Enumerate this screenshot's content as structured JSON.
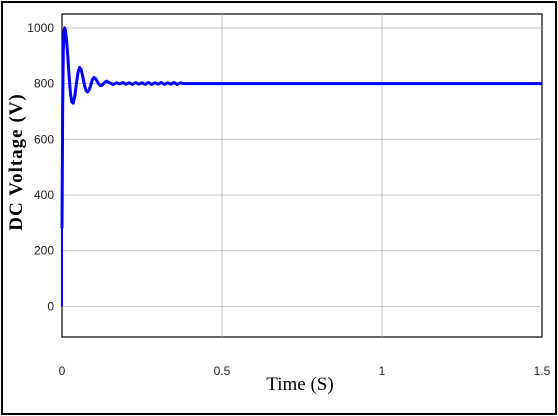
{
  "chart_data": {
    "type": "line",
    "title": "",
    "xlabel": "Time (S)",
    "ylabel": "DC Voltage (V)",
    "xlim": [
      0,
      1.5
    ],
    "ylim": [
      -110,
      1050
    ],
    "xticks": [
      0,
      0.5,
      1,
      1.5
    ],
    "yticks": [
      0,
      200,
      400,
      600,
      800,
      1000
    ],
    "xtick_labels": [
      "0",
      "0.5",
      "1",
      "1.5"
    ],
    "ytick_labels": [
      "0",
      "200",
      "400",
      "600",
      "800",
      "1000"
    ],
    "grid": true,
    "line_color": "#0000ff",
    "series": [
      {
        "x": [
          0,
          0.002,
          0.004,
          0.006,
          0.008,
          0.01,
          0.014,
          0.018,
          0.022,
          0.026,
          0.03,
          0.035,
          0.04,
          0.045,
          0.05,
          0.055,
          0.06,
          0.065,
          0.07,
          0.075,
          0.08,
          0.085,
          0.09,
          0.095,
          0.1,
          0.105,
          0.11,
          0.115,
          0.12,
          0.125,
          0.13,
          0.135,
          0.14,
          0.15,
          0.16,
          0.17,
          0.18,
          0.19,
          0.2,
          0.21,
          0.22,
          0.23,
          0.24,
          0.25,
          0.26,
          0.27,
          0.28,
          0.29,
          0.3,
          0.31,
          0.32,
          0.33,
          0.34,
          0.35,
          0.36,
          0.37,
          0.38,
          0.5,
          0.75,
          1.0,
          1.25,
          1.5
        ],
        "y": [
          280,
          700,
          920,
          985,
          1000,
          995,
          960,
          900,
          830,
          770,
          735,
          730,
          755,
          800,
          840,
          858,
          850,
          825,
          795,
          775,
          770,
          778,
          795,
          815,
          822,
          818,
          808,
          798,
          793,
          794,
          800,
          806,
          809,
          802,
          797,
          803,
          799,
          804,
          798,
          803,
          797,
          804,
          798,
          803,
          797,
          804,
          797,
          803,
          798,
          804,
          797,
          803,
          798,
          804,
          797,
          803,
          800,
          800,
          800,
          800,
          800,
          800
        ]
      }
    ]
  }
}
